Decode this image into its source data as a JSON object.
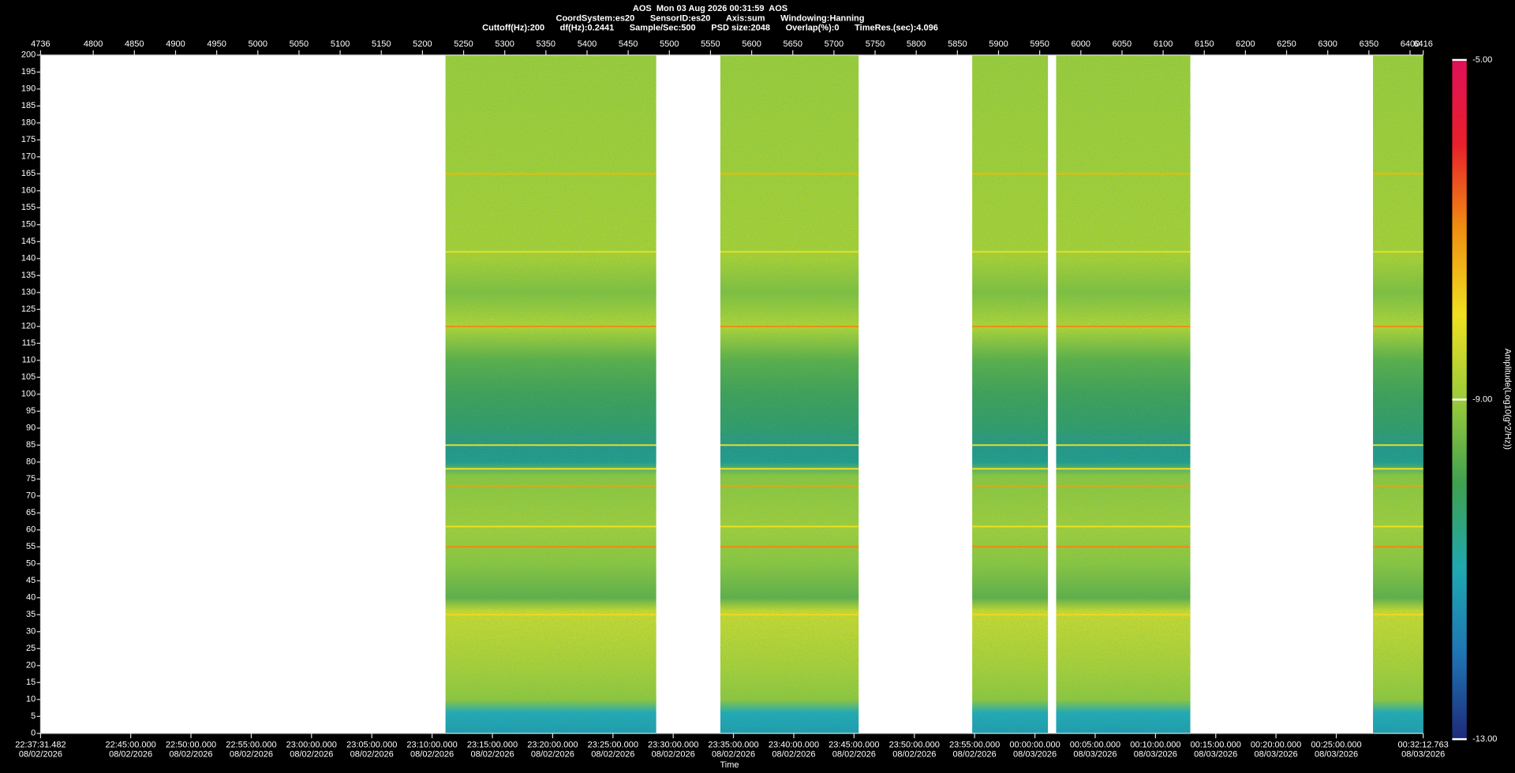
{
  "header": {
    "title": "AOS  Mon 03 Aug 2026 00:31:59  AOS",
    "line2": [
      "CoordSystem:es20",
      "SensorID:es20",
      "Axis:sum",
      "Windowing:Hanning"
    ],
    "line3": [
      "Cuttoff(Hz):200",
      "df(Hz):0.2441",
      "Sample/Sec:500",
      "PSD size:2048",
      "Overlap(%):0",
      "TimeRes.(sec):4.096"
    ]
  },
  "chart_data": {
    "type": "spectrogram",
    "xlabel": "Time",
    "xlim": [
      4736,
      6416
    ],
    "xticks": [
      4736,
      4800,
      4850,
      4900,
      4950,
      5000,
      5050,
      5100,
      5150,
      5200,
      5250,
      5300,
      5350,
      5400,
      5450,
      5500,
      5550,
      5600,
      5650,
      5700,
      5750,
      5800,
      5850,
      5900,
      5950,
      6000,
      6050,
      6100,
      6150,
      6200,
      6250,
      6300,
      6350,
      6400,
      6416
    ],
    "time_ticks": [
      {
        "value": 4736,
        "label": "22:37:31.482",
        "date": "08/02/2026"
      },
      {
        "value": 4845.5,
        "label": "22:45:00.000",
        "date": "08/02/2026"
      },
      {
        "value": 4918.7,
        "label": "22:50:00.000",
        "date": "08/02/2026"
      },
      {
        "value": 4992.0,
        "label": "22:55:00.000",
        "date": "08/02/2026"
      },
      {
        "value": 5065.2,
        "label": "23:00:00.000",
        "date": "08/02/2026"
      },
      {
        "value": 5138.5,
        "label": "23:05:00.000",
        "date": "08/02/2026"
      },
      {
        "value": 5211.7,
        "label": "23:10:00.000",
        "date": "08/02/2026"
      },
      {
        "value": 5285.0,
        "label": "23:15:00.000",
        "date": "08/02/2026"
      },
      {
        "value": 5358.2,
        "label": "23:20:00.000",
        "date": "08/02/2026"
      },
      {
        "value": 5431.5,
        "label": "23:25:00.000",
        "date": "08/02/2026"
      },
      {
        "value": 5504.7,
        "label": "23:30:00.000",
        "date": "08/02/2026"
      },
      {
        "value": 5577.9,
        "label": "23:35:00.000",
        "date": "08/02/2026"
      },
      {
        "value": 5651.2,
        "label": "23:40:00.000",
        "date": "08/02/2026"
      },
      {
        "value": 5724.4,
        "label": "23:45:00.000",
        "date": "08/02/2026"
      },
      {
        "value": 5797.7,
        "label": "23:50:00.000",
        "date": "08/02/2026"
      },
      {
        "value": 5870.9,
        "label": "23:55:00.000",
        "date": "08/02/2026"
      },
      {
        "value": 5944.2,
        "label": "00:00:00.000",
        "date": "08/03/2026"
      },
      {
        "value": 6017.4,
        "label": "00:05:00.000",
        "date": "08/03/2026"
      },
      {
        "value": 6090.7,
        "label": "00:10:00.000",
        "date": "08/03/2026"
      },
      {
        "value": 6163.9,
        "label": "00:15:00.000",
        "date": "08/03/2026"
      },
      {
        "value": 6237.1,
        "label": "00:20:00.000",
        "date": "08/03/2026"
      },
      {
        "value": 6310.4,
        "label": "00:25:00.000",
        "date": "08/03/2026"
      },
      {
        "value": 6416,
        "label": "00:32:12.763",
        "date": "08/03/2026"
      }
    ],
    "ylim": [
      0,
      200
    ],
    "yticks": [
      0,
      5,
      10,
      15,
      20,
      25,
      30,
      35,
      40,
      45,
      50,
      55,
      60,
      65,
      70,
      75,
      80,
      85,
      90,
      95,
      100,
      105,
      110,
      115,
      120,
      125,
      130,
      135,
      140,
      145,
      150,
      155,
      160,
      165,
      170,
      175,
      180,
      185,
      190,
      195,
      200
    ],
    "segments": [
      {
        "start": 5228,
        "end": 5484
      },
      {
        "start": 5562,
        "end": 5730
      },
      {
        "start": 5868,
        "end": 5960
      },
      {
        "start": 5970,
        "end": 6133
      },
      {
        "start": 6355,
        "end": 6416
      }
    ],
    "tones": [
      {
        "freq": 165,
        "color": "#f2b800"
      },
      {
        "freq": 142,
        "color": "#e8e020"
      },
      {
        "freq": 120,
        "color": "#f08a10"
      },
      {
        "freq": 85,
        "color": "#f5e020"
      },
      {
        "freq": 78,
        "color": "#f5e020"
      },
      {
        "freq": 73,
        "color": "#f0a010"
      },
      {
        "freq": 61,
        "color": "#e8e020"
      },
      {
        "freq": 55,
        "color": "#f08a10"
      },
      {
        "freq": 35,
        "color": "#f0d820"
      }
    ],
    "colorbar": {
      "label": "Amplitude(Log10(g^2/Hz))",
      "lim": [
        -13,
        -5
      ],
      "ticks": [
        {
          "value": -5,
          "label": "-5.00"
        },
        {
          "value": -9,
          "label": "-9.00"
        },
        {
          "value": -13,
          "label": "-13.00"
        }
      ],
      "colors": [
        "#1e2a7a",
        "#1f74b4",
        "#1fa8b0",
        "#3fa050",
        "#9acb3a",
        "#f0e020",
        "#f09010",
        "#e8202a",
        "#e0105a"
      ]
    }
  }
}
